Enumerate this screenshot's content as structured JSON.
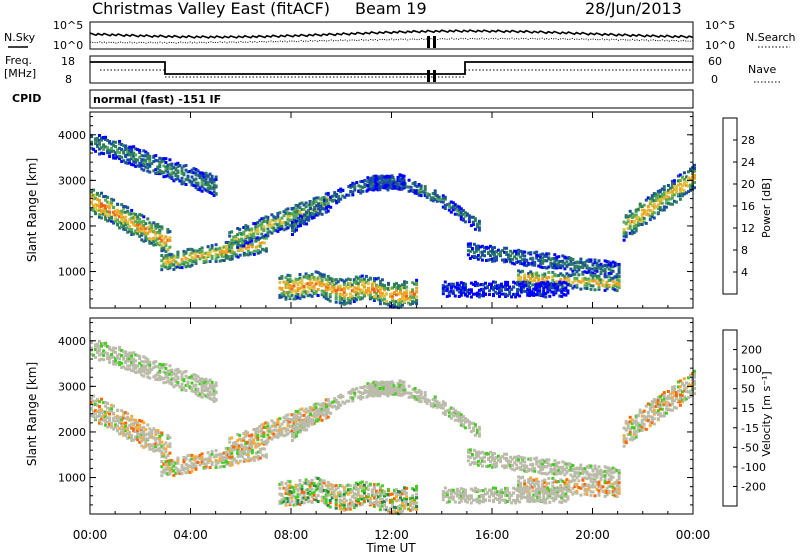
{
  "header": {
    "title": "Christmas Valley East (fitACF)",
    "beam": "Beam 19",
    "date": "28/Jun/2013"
  },
  "panels": {
    "sky": {
      "left_label": "N.Sky",
      "left_ticks": [
        "10^5",
        "10^0"
      ],
      "right_ticks": [
        "10^5",
        "10^0"
      ],
      "right_label": "N.Search"
    },
    "freq": {
      "left_label_1": "Freq.",
      "left_label_2": "[MHz]",
      "left_ticks": [
        "18",
        "8"
      ],
      "right_ticks": [
        "60",
        "0"
      ],
      "right_label": "Nave"
    },
    "cpid": {
      "label": "CPID",
      "text": "normal (fast) -151 IF"
    }
  },
  "colors": {
    "power": [
      "#0000ff",
      "#1a4fa0",
      "#2e7d5e",
      "#55aa55",
      "#e0c040",
      "#f0a020",
      "#f06020",
      "#ff0000"
    ],
    "velocity": [
      "#ff0000",
      "#ff6600",
      "#ffaa33",
      "#bbbbaa",
      "#bbbbaa",
      "#44cc22",
      "#228844",
      "#3366aa",
      "#1010c0"
    ]
  },
  "chart_data": [
    {
      "type": "heatmap",
      "ylabel": "Slant Range [km]",
      "xlabel": "Time UT",
      "x_ticks": [
        "00:00",
        "04:00",
        "08:00",
        "12:00",
        "16:00",
        "20:00",
        "00:00"
      ],
      "y_ticks": [
        "1000",
        "2000",
        "3000",
        "4000"
      ],
      "ylim": [
        200,
        4500
      ],
      "colorbar": {
        "label": "Power [dB]",
        "ticks": [
          "4",
          "8",
          "12",
          "16",
          "20",
          "24",
          "28"
        ],
        "range": [
          0,
          32
        ]
      }
    },
    {
      "type": "heatmap",
      "ylabel": "Slant Range [km]",
      "xlabel": "Time UT",
      "x_ticks": [
        "00:00",
        "04:00",
        "08:00",
        "12:00",
        "16:00",
        "20:00",
        "00:00"
      ],
      "y_ticks": [
        "1000",
        "2000",
        "3000",
        "4000"
      ],
      "ylim": [
        200,
        4500
      ],
      "colorbar": {
        "label": "Velocity [m s⁻¹]",
        "ticks": [
          "200",
          "100",
          "50",
          "15",
          "-15",
          "-50",
          "-100",
          "-200"
        ],
        "range": [
          -250,
          250
        ]
      }
    }
  ]
}
